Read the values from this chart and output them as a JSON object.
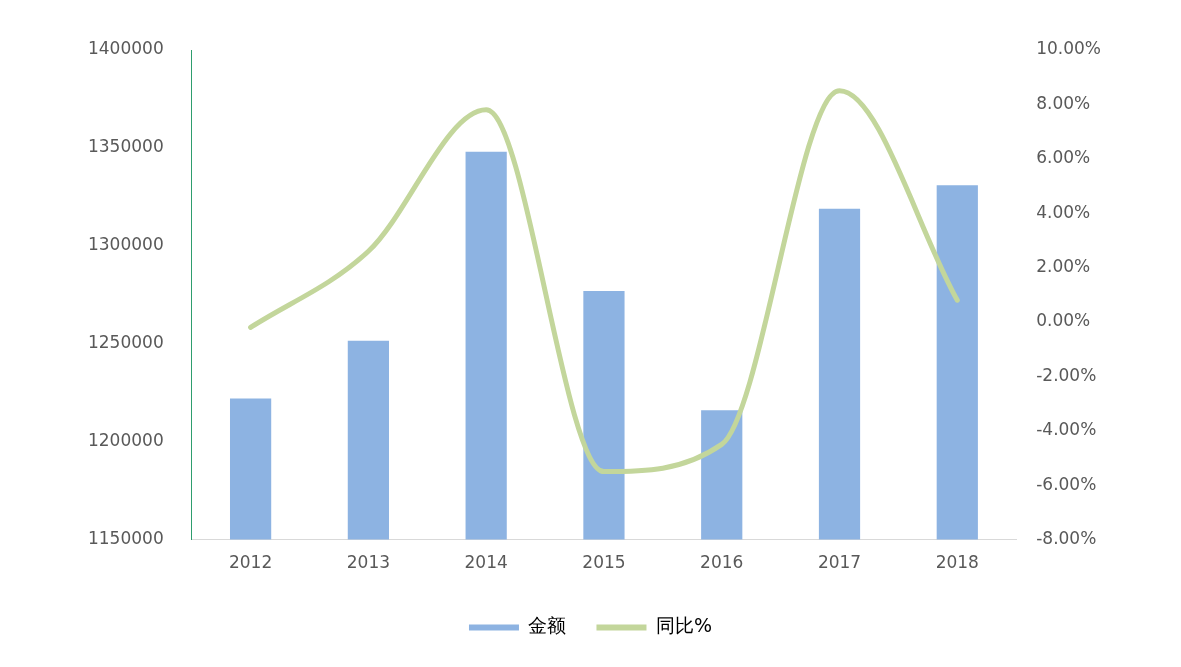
{
  "chart_data": {
    "type": "bar",
    "categories": [
      "2012",
      "2013",
      "2014",
      "2015",
      "2016",
      "2017",
      "2018"
    ],
    "series": [
      {
        "name": "金额",
        "color": "#8db3e2",
        "values": [
          1222000,
          1251500,
          1348000,
          1277000,
          1216000,
          1319000,
          1331000
        ]
      },
      {
        "name": "同比%",
        "type": "line",
        "axis": "y2",
        "color": "#c3d69b",
        "values": [
          -0.2,
          2.6,
          7.8,
          -5.5,
          -4.5,
          8.5,
          0.8
        ]
      }
    ],
    "ylim": [
      1150000,
      1400000
    ],
    "yticks": [
      1150000,
      1200000,
      1250000,
      1300000,
      1350000,
      1400000
    ],
    "y2lim": [
      -8,
      10
    ],
    "y2ticks": [
      {
        "value": -8,
        "label": "-8.00%"
      },
      {
        "value": -6,
        "label": "-6.00%"
      },
      {
        "value": -4,
        "label": "-4.00%"
      },
      {
        "value": -2,
        "label": "-2.00%"
      },
      {
        "value": 0,
        "label": "0.00%"
      },
      {
        "value": 2,
        "label": "2.00%"
      },
      {
        "value": 4,
        "label": "4.00%"
      },
      {
        "value": 6,
        "label": "6.00%"
      },
      {
        "value": 8,
        "label": "8.00%"
      },
      {
        "value": 10,
        "label": "10.00%"
      }
    ],
    "grid": false,
    "legend": "bottom",
    "marker": "none"
  }
}
